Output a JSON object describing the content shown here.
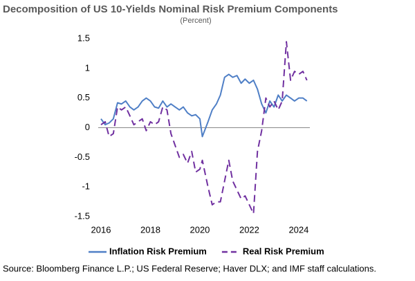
{
  "chart_data": {
    "type": "line",
    "title": "Decomposition of US 10-Yields Nominal Risk Premium Components",
    "subtitle": "(Percent)",
    "source": "Source: Bloomberg Finance L.P.; US Federal Reserve; Haver DLX; and IMF staff calculations.",
    "x": [
      2016,
      2016.17,
      2016.33,
      2016.5,
      2016.67,
      2016.83,
      2017,
      2017.17,
      2017.33,
      2017.5,
      2017.67,
      2017.83,
      2018,
      2018.17,
      2018.33,
      2018.5,
      2018.67,
      2018.83,
      2019,
      2019.17,
      2019.33,
      2019.5,
      2019.67,
      2019.83,
      2020,
      2020.1,
      2020.33,
      2020.5,
      2020.67,
      2020.83,
      2021,
      2021.17,
      2021.33,
      2021.5,
      2021.67,
      2021.83,
      2022,
      2022.17,
      2022.33,
      2022.5,
      2022.67,
      2022.83,
      2023,
      2023.17,
      2023.33,
      2023.5,
      2023.67,
      2023.83,
      2024,
      2024.17,
      2024.33
    ],
    "series": [
      {
        "name": "Inflation Risk Premium",
        "color": "#4f7fc6",
        "dash": false,
        "values": [
          0.15,
          0.05,
          0.08,
          0.15,
          0.42,
          0.4,
          0.45,
          0.35,
          0.3,
          0.35,
          0.45,
          0.5,
          0.45,
          0.35,
          0.33,
          0.45,
          0.35,
          0.4,
          0.35,
          0.3,
          0.35,
          0.25,
          0.2,
          0.22,
          0.15,
          -0.15,
          0.1,
          0.3,
          0.4,
          0.55,
          0.85,
          0.9,
          0.85,
          0.88,
          0.75,
          0.82,
          0.75,
          0.8,
          0.65,
          0.4,
          0.25,
          0.45,
          0.35,
          0.55,
          0.45,
          0.55,
          0.5,
          0.45,
          0.5,
          0.5,
          0.45
        ]
      },
      {
        "name": "Real Risk Premium",
        "color": "#7030a0",
        "dash": true,
        "values": [
          0.05,
          0.1,
          -0.15,
          -0.1,
          0.35,
          0.3,
          0.35,
          0.2,
          0.05,
          0.1,
          0.15,
          -0.05,
          0.1,
          0.05,
          0.1,
          0.35,
          0.3,
          -0.1,
          -0.3,
          -0.5,
          -0.45,
          -0.6,
          -0.4,
          -0.75,
          -0.7,
          -0.55,
          -1.0,
          -1.3,
          -1.25,
          -1.25,
          -0.9,
          -0.55,
          -0.9,
          -1.05,
          -1.2,
          -1.15,
          -1.3,
          -1.45,
          -0.4,
          -0.05,
          0.5,
          0.35,
          0.45,
          0.3,
          0.45,
          1.45,
          0.8,
          0.95,
          0.9,
          0.95,
          0.8
        ]
      }
    ],
    "xlim": [
      2016,
      2024.45
    ],
    "xticks": [
      2016,
      2018,
      2020,
      2022,
      2024
    ],
    "ylim": [
      -1.5,
      1.5
    ],
    "yticks": [
      -1.5,
      -1,
      -0.5,
      0,
      0.5,
      1,
      1.5
    ],
    "legend": "bottom"
  }
}
